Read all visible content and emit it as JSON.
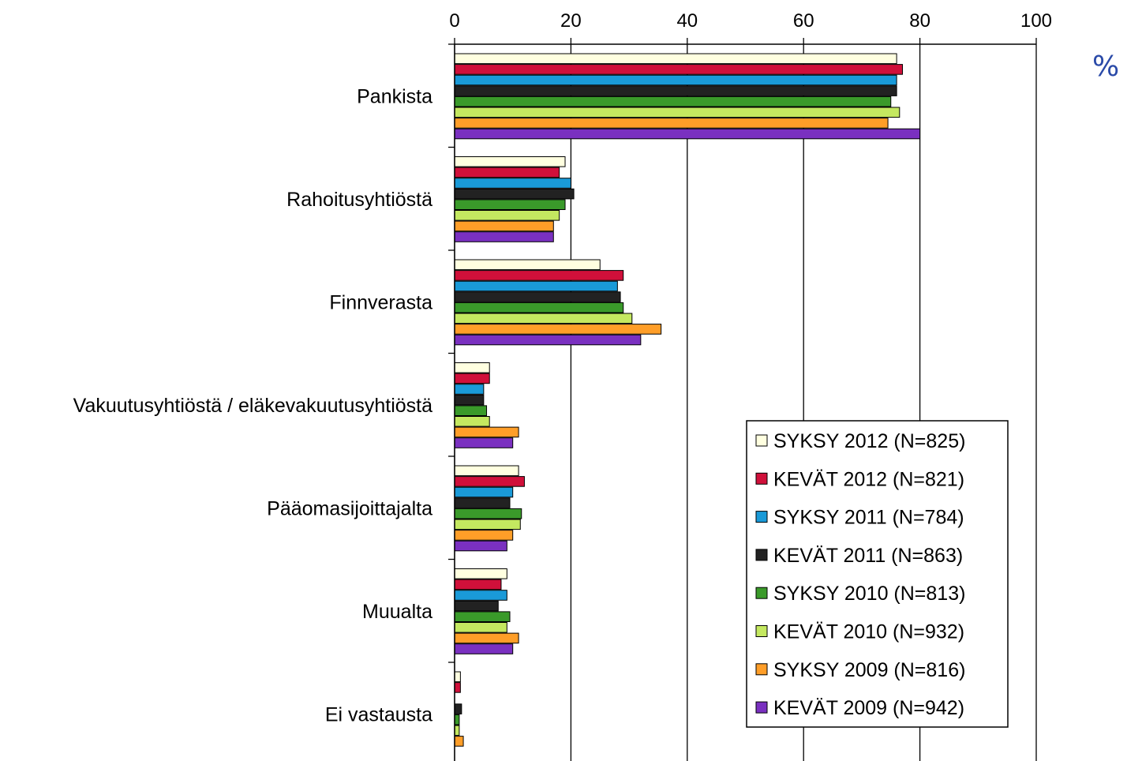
{
  "unit_label": "%",
  "chart_data": {
    "type": "bar",
    "orientation": "horizontal",
    "title": "",
    "xlabel": "",
    "ylabel": "",
    "xlim": [
      0,
      100
    ],
    "ticks": [
      "0",
      "20",
      "40",
      "60",
      "80",
      "100"
    ],
    "tick_values": [
      0,
      20,
      40,
      60,
      80,
      100
    ],
    "grid": true,
    "legend_position": "bottom-right",
    "categories": [
      "Pankista",
      "Rahoitusyhtiöstä",
      "Finnverasta",
      "Vakuutusyhtiöstä / eläkevakuutusyhtiöstä",
      "Pääomasijoittajalta",
      "Muualta",
      "Ei vastausta"
    ],
    "series": [
      {
        "name": "SYKSY 2012 (N=825)",
        "color": "#ffffe0",
        "values": [
          76,
          19,
          25,
          6,
          11,
          9,
          1
        ]
      },
      {
        "name": "KEVÄT 2012 (N=821)",
        "color": "#d0103a",
        "values": [
          77,
          18,
          29,
          6,
          12,
          8,
          1
        ]
      },
      {
        "name": "SYKSY 2011 (N=784)",
        "color": "#1a9ad8",
        "values": [
          76,
          20,
          28,
          5,
          10,
          9,
          0
        ]
      },
      {
        "name": "KEVÄT 2011 (N=863)",
        "color": "#222222",
        "values": [
          76,
          20.5,
          28.5,
          5,
          9.5,
          7.5,
          1.2
        ]
      },
      {
        "name": "SYKSY 2010 (N=813)",
        "color": "#3a9a2a",
        "values": [
          75,
          19,
          29,
          5.5,
          11.5,
          9.5,
          0.8
        ]
      },
      {
        "name": "KEVÄT 2010 (N=932)",
        "color": "#c4e860",
        "values": [
          76.5,
          18,
          30.5,
          6,
          11.3,
          9,
          0.8
        ]
      },
      {
        "name": "SYKSY 2009 (N=816)",
        "color": "#ff9e28",
        "values": [
          74.5,
          17,
          35.5,
          11,
          10,
          11,
          1.5
        ]
      },
      {
        "name": "KEVÄT 2009 (N=942)",
        "color": "#7a30c0",
        "values": [
          80,
          17,
          32,
          10,
          9,
          10,
          0
        ]
      }
    ]
  }
}
